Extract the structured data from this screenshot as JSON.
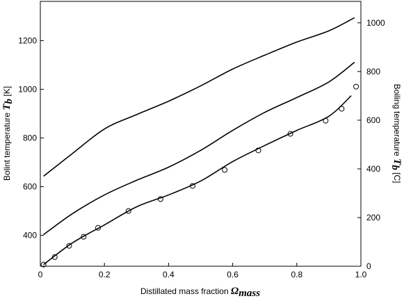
{
  "chart_data": {
    "type": "line",
    "x_label": "Distillated mass fraction",
    "x_label_symbol": "Ω",
    "x_label_sub": "mass",
    "y_label": "Bolint temperature",
    "y_label_symbol": "T",
    "y_label_sub": "b",
    "y_label_unit": "[K]",
    "y2_label": "Boiling temperature",
    "y2_label_symbol": "T",
    "y2_label_sub": "b",
    "y2_label_unit": "[C]",
    "xlim": [
      0,
      1
    ],
    "xticks": [
      0,
      {
        "value": 0.2,
        "label": "0.2"
      },
      {
        "value": 0.4,
        "label": "0.4"
      },
      {
        "value": 0.6,
        "label": "0.6"
      },
      {
        "value": 0.8,
        "label": "0.8"
      },
      {
        "value": 1,
        "label": "1.0"
      }
    ],
    "ylim": [
      273.15,
      1361
    ],
    "yticks": [
      400,
      600,
      800,
      1000,
      1200
    ],
    "y2lim": [
      0,
      1088
    ],
    "y2ticks": [
      0,
      200,
      400,
      600,
      800,
      1000
    ],
    "series": [
      {
        "color": "#000000",
        "marker": "none",
        "x": [
          0.01,
          0.1,
          0.2,
          0.3,
          0.4,
          0.5,
          0.6,
          0.7,
          0.8,
          0.9,
          0.98
        ],
        "values": [
          643,
          736,
          837,
          896,
          951,
          1014,
          1083,
          1140,
          1194,
          1240,
          1294
        ]
      },
      {
        "color": "#000000",
        "marker": "none",
        "x": [
          0.01,
          0.1,
          0.2,
          0.3,
          0.4,
          0.5,
          0.6,
          0.7,
          0.8,
          0.9,
          0.98
        ],
        "values": [
          403,
          489,
          566,
          626,
          680,
          749,
          831,
          905,
          966,
          1030,
          1111
        ]
      },
      {
        "color": "#000000",
        "marker": "none",
        "x": [
          0.01,
          0.1,
          0.2,
          0.3,
          0.4,
          0.5,
          0.6,
          0.7,
          0.8,
          0.9,
          0.97
        ],
        "values": [
          280,
          369,
          443,
          517,
          566,
          623,
          703,
          769,
          831,
          889,
          974
        ]
      },
      {
        "color": "#000000",
        "marker": "circle",
        "x": [
          0.01,
          0.045,
          0.09,
          0.135,
          0.18,
          0.275,
          0.375,
          0.475,
          0.575,
          0.68,
          0.78,
          0.89,
          0.94,
          0.985
        ],
        "values": [
          280,
          311,
          357,
          394,
          431,
          500,
          549,
          603,
          669,
          749,
          817,
          871,
          920,
          1011
        ]
      }
    ]
  }
}
